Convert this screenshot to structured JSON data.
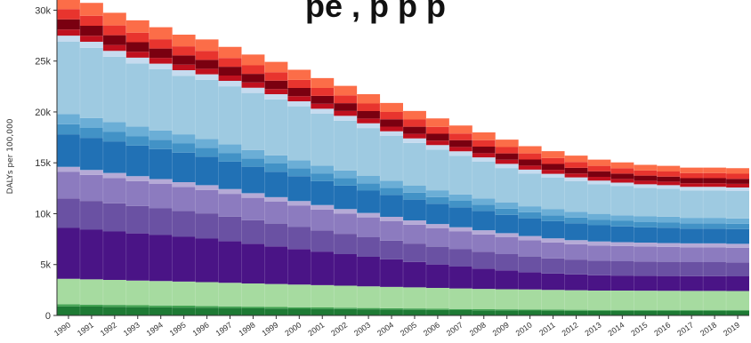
{
  "title_fragment": "pe         ,       p        p p",
  "chart_data": {
    "type": "area",
    "stacked": true,
    "title": "",
    "xlabel": "",
    "ylabel": "DALYs per 100,000",
    "ylim": [
      0,
      31000
    ],
    "yticks": [
      0,
      5000,
      10000,
      15000,
      20000,
      25000,
      30000
    ],
    "ytick_labels": [
      "0",
      "5k",
      "10k",
      "15k",
      "20k",
      "25k",
      "30k"
    ],
    "grid": false,
    "legend": "none",
    "x": [
      "1990",
      "1991",
      "1992",
      "1993",
      "1994",
      "1995",
      "1996",
      "1997",
      "1998",
      "1999",
      "2000",
      "2001",
      "2002",
      "2003",
      "2004",
      "2005",
      "2006",
      "2007",
      "2008",
      "2009",
      "2010",
      "2011",
      "2012",
      "2013",
      "2014",
      "2015",
      "2016",
      "2017",
      "2018",
      "2019"
    ],
    "series": [
      {
        "color": "#1e7a34",
        "values": [
          900,
          870,
          850,
          820,
          800,
          780,
          760,
          730,
          700,
          680,
          660,
          640,
          620,
          600,
          580,
          560,
          540,
          520,
          500,
          490,
          480,
          470,
          460,
          450,
          450,
          450,
          450,
          450,
          450,
          450
        ]
      },
      {
        "color": "#43a352",
        "values": [
          200,
          195,
          190,
          185,
          180,
          175,
          170,
          165,
          160,
          155,
          150,
          145,
          140,
          135,
          130,
          125,
          120,
          115,
          110,
          110,
          110,
          105,
          100,
          100,
          100,
          100,
          100,
          100,
          100,
          100
        ]
      },
      {
        "color": "#a6dba0",
        "values": [
          2500,
          2480,
          2450,
          2420,
          2400,
          2370,
          2340,
          2310,
          2280,
          2250,
          2220,
          2190,
          2160,
          2130,
          2100,
          2080,
          2050,
          2020,
          2000,
          1980,
          1960,
          1940,
          1920,
          1900,
          1890,
          1880,
          1870,
          1860,
          1860,
          1850
        ]
      },
      {
        "color": "#4a1486",
        "values": [
          5000,
          4880,
          4760,
          4640,
          4520,
          4400,
          4280,
          4100,
          3900,
          3700,
          3500,
          3300,
          3100,
          2900,
          2700,
          2500,
          2300,
          2150,
          2000,
          1850,
          1700,
          1600,
          1550,
          1500,
          1480,
          1470,
          1460,
          1450,
          1450,
          1440
        ]
      },
      {
        "color": "#6a51a3",
        "values": [
          2900,
          2830,
          2760,
          2690,
          2620,
          2550,
          2480,
          2400,
          2320,
          2240,
          2160,
          2080,
          2000,
          1920,
          1850,
          1800,
          1750,
          1700,
          1650,
          1600,
          1550,
          1500,
          1460,
          1430,
          1410,
          1400,
          1390,
          1380,
          1380,
          1370
        ]
      },
      {
        "color": "#8c7bbf",
        "values": [
          2600,
          2550,
          2500,
          2450,
          2400,
          2350,
          2300,
          2250,
          2200,
          2150,
          2100,
          2050,
          2000,
          1950,
          1900,
          1850,
          1800,
          1750,
          1700,
          1650,
          1600,
          1560,
          1520,
          1500,
          1490,
          1480,
          1470,
          1460,
          1460,
          1450
        ]
      },
      {
        "color": "#b5aad6",
        "values": [
          500,
          495,
          490,
          485,
          480,
          475,
          470,
          465,
          460,
          455,
          450,
          445,
          440,
          435,
          430,
          425,
          420,
          415,
          410,
          405,
          400,
          395,
          390,
          385,
          380,
          380,
          380,
          380,
          380,
          380
        ]
      },
      {
        "color": "#2171b5",
        "values": [
          3200,
          3150,
          3100,
          3000,
          2950,
          2900,
          2800,
          2700,
          2600,
          2500,
          2450,
          2350,
          2300,
          2200,
          2150,
          2050,
          2000,
          1950,
          1900,
          1800,
          1750,
          1700,
          1650,
          1600,
          1550,
          1500,
          1500,
          1450,
          1450,
          1450
        ]
      },
      {
        "color": "#4292c6",
        "values": [
          1000,
          980,
          960,
          940,
          920,
          900,
          880,
          850,
          820,
          800,
          780,
          760,
          740,
          720,
          700,
          680,
          660,
          640,
          620,
          600,
          590,
          580,
          570,
          560,
          550,
          540,
          540,
          530,
          530,
          520
        ]
      },
      {
        "color": "#6baed6",
        "values": [
          1000,
          980,
          960,
          940,
          920,
          900,
          880,
          850,
          820,
          800,
          780,
          760,
          740,
          720,
          700,
          680,
          660,
          640,
          620,
          600,
          590,
          580,
          570,
          560,
          550,
          540,
          540,
          530,
          530,
          520
        ]
      },
      {
        "color": "#9ecae1",
        "values": [
          7100,
          6900,
          6400,
          6200,
          6000,
          5750,
          5800,
          5700,
          5600,
          5500,
          5300,
          5100,
          4900,
          4700,
          4400,
          4200,
          4000,
          3800,
          3600,
          3400,
          3200,
          3100,
          3000,
          2900,
          2850,
          2800,
          2750,
          2700,
          2700,
          2700
        ]
      },
      {
        "color": "#c6dbef",
        "values": [
          600,
          590,
          580,
          570,
          560,
          550,
          540,
          530,
          520,
          510,
          500,
          490,
          480,
          470,
          460,
          450,
          440,
          430,
          420,
          410,
          400,
          390,
          380,
          370,
          360,
          350,
          350,
          350,
          350,
          350
        ]
      },
      {
        "color": "#c0101e",
        "values": [
          600,
          590,
          580,
          570,
          560,
          550,
          540,
          530,
          520,
          510,
          500,
          490,
          480,
          470,
          460,
          450,
          440,
          430,
          420,
          410,
          400,
          390,
          380,
          370,
          360,
          350,
          350,
          350,
          350,
          350
        ]
      },
      {
        "color": "#7a0010",
        "values": [
          1000,
          980,
          960,
          940,
          920,
          900,
          880,
          860,
          840,
          820,
          800,
          780,
          760,
          740,
          720,
          700,
          680,
          660,
          640,
          620,
          600,
          580,
          560,
          540,
          520,
          500,
          500,
          500,
          500,
          500
        ]
      },
      {
        "color": "#e8342e",
        "values": [
          1000,
          980,
          960,
          940,
          920,
          900,
          880,
          860,
          840,
          820,
          800,
          780,
          760,
          740,
          720,
          700,
          680,
          660,
          640,
          620,
          600,
          580,
          560,
          540,
          520,
          500,
          500,
          500,
          500,
          500
        ]
      },
      {
        "color": "#fc6d48",
        "values": [
          1300,
          1270,
          1240,
          1210,
          1180,
          1150,
          1120,
          1090,
          1060,
          1030,
          1000,
          970,
          940,
          910,
          880,
          850,
          820,
          790,
          760,
          730,
          700,
          670,
          640,
          610,
          580,
          560,
          550,
          540,
          540,
          540
        ]
      }
    ]
  }
}
